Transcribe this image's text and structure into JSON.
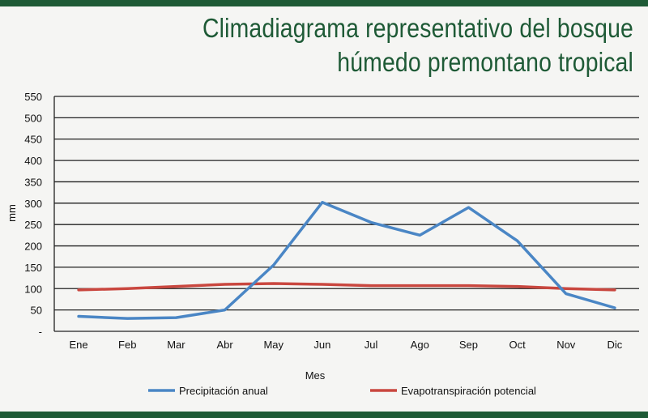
{
  "title": "Climadiagrama representativo del bosque húmedo premontano tropical",
  "colors": {
    "band": "#1e5a36",
    "title": "#1e5a36",
    "precip": "#4a86c5",
    "evapo": "#c9473f",
    "grid": "#222222"
  },
  "chart_data": {
    "type": "line",
    "categories": [
      "Ene",
      "Feb",
      "Mar",
      "Abr",
      "May",
      "Jun",
      "Jul",
      "Ago",
      "Sep",
      "Oct",
      "Nov",
      "Dic"
    ],
    "series": [
      {
        "name": "Precipitación anual",
        "values": [
          35,
          30,
          32,
          50,
          155,
          302,
          255,
          225,
          290,
          212,
          88,
          55
        ]
      },
      {
        "name": "Evapotranspiración potencial",
        "values": [
          97,
          100,
          105,
          110,
          112,
          110,
          107,
          107,
          107,
          105,
          100,
          97
        ]
      }
    ],
    "y_ticks": [
      "-",
      "50",
      "100",
      "150",
      "200",
      "250",
      "300",
      "350",
      "400",
      "450",
      "500",
      "550"
    ],
    "ylim": [
      0,
      550
    ],
    "xlabel": "Mes",
    "ylabel": "mm",
    "grid": "horizontal",
    "legend_position": "bottom"
  }
}
